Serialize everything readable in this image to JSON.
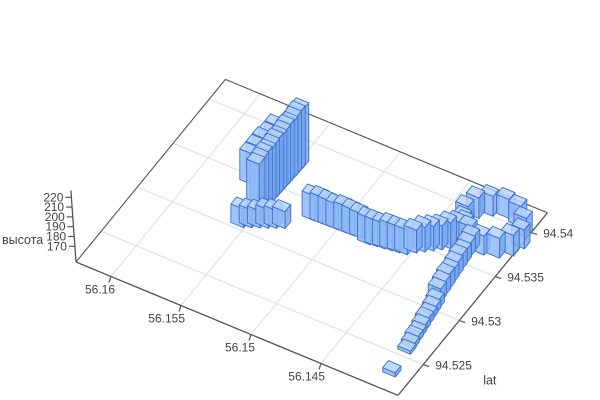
{
  "chart_data": {
    "type": "3d-box-track",
    "title": "",
    "description": "3D track of semi-transparent blue cuboids over a lon/lat floor grid: flat tiles start low in front, climb diagonally, make a closed ring loop at right, run back left as a wavy elevated trail, then rise into a tall wall of bars reaching the z maximum",
    "zaxis": {
      "label": "высота",
      "ticks": [
        "170",
        "180",
        "190",
        "200",
        "210",
        "220"
      ],
      "tick_values": [
        170,
        180,
        190,
        200,
        210,
        220
      ],
      "range": [
        154,
        227
      ]
    },
    "lon_axis": {
      "label": "",
      "ticks": [
        "56.16",
        "56.155",
        "56.15",
        "56.145"
      ],
      "tick_values": [
        56.16,
        56.155,
        56.15,
        56.145
      ],
      "range": [
        56.1625,
        56.1395
      ],
      "step": 0.005
    },
    "lat_axis": {
      "label": "lat",
      "ticks": [
        "94.525",
        "94.53",
        "94.535",
        "94.54"
      ],
      "tick_values": [
        94.525,
        94.53,
        94.535,
        94.54
      ],
      "range": [
        94.5215,
        94.5423
      ],
      "step": 0.005
    },
    "colors": {
      "background": "#ffffff",
      "grid": "#e2e2e2",
      "axis_line": "#555555",
      "tick_label": "#444444",
      "box_top": "#b7d3fa",
      "box_left": "#8fbaf8",
      "box_right": "#79a7ef",
      "box_edge": "#3b70cc"
    },
    "box": {
      "half_lon": 0.00045,
      "half_lat": 0.0004,
      "jitter": 0.8,
      "fill_opacity": 0.85
    },
    "segments": [
      {
        "name": "start-tile",
        "points": [
          [
            56.1403,
            94.5222,
            168,
            173
          ]
        ]
      },
      {
        "name": "climb-low",
        "n": 9,
        "from": [
          56.1404,
          94.5245,
          170,
          174
        ],
        "to": [
          56.1407,
          94.529,
          174,
          182
        ]
      },
      {
        "name": "climb-mid",
        "n": 9,
        "from": [
          56.1408,
          94.5295,
          176,
          190
        ],
        "to": [
          56.141,
          94.5345,
          182,
          196
        ]
      },
      {
        "name": "ring-loop",
        "points": [
          [
            56.1408,
            94.5355,
            170,
            190
          ],
          [
            56.1398,
            94.5357,
            171,
            191
          ],
          [
            56.1391,
            94.5363,
            172,
            192
          ],
          [
            56.1388,
            94.5372,
            173,
            193
          ],
          [
            56.1391,
            94.5381,
            174,
            194
          ],
          [
            56.1398,
            94.5387,
            176,
            196
          ],
          [
            56.1408,
            94.539,
            176,
            196
          ],
          [
            56.1418,
            94.5387,
            175,
            195
          ],
          [
            56.1425,
            94.5381,
            174,
            194
          ],
          [
            56.1428,
            94.5372,
            173,
            193
          ],
          [
            56.1425,
            94.5363,
            171,
            191
          ],
          [
            56.1418,
            94.5357,
            170,
            190
          ]
        ]
      },
      {
        "name": "trail-right",
        "n": 7,
        "from": [
          56.1422,
          94.536,
          166,
          192
        ],
        "to": [
          56.1447,
          94.5337,
          165,
          189
        ]
      },
      {
        "name": "trail-dip",
        "n": 6,
        "from": [
          56.1452,
          94.5334,
          163,
          189
        ],
        "to": [
          56.1475,
          94.5327,
          166,
          192
        ]
      },
      {
        "name": "trail-left",
        "n": 7,
        "from": [
          56.148,
          94.5326,
          170,
          196
        ],
        "to": [
          56.1512,
          94.5322,
          173,
          199
        ]
      },
      {
        "name": "approach-row",
        "n": 6,
        "from": [
          56.1527,
          94.531,
          167,
          185
        ],
        "to": [
          56.155,
          94.5297,
          166,
          184
        ]
      },
      {
        "name": "tower-back",
        "n": 5,
        "from": [
          56.1558,
          94.5325,
          180,
          212
        ],
        "to": [
          56.1554,
          94.5352,
          186,
          218
        ]
      },
      {
        "name": "tower-wall",
        "n": 13,
        "from": [
          56.1549,
          94.5317,
          160,
          214
        ],
        "to": [
          56.1546,
          94.5372,
          162,
          222
        ]
      }
    ]
  }
}
